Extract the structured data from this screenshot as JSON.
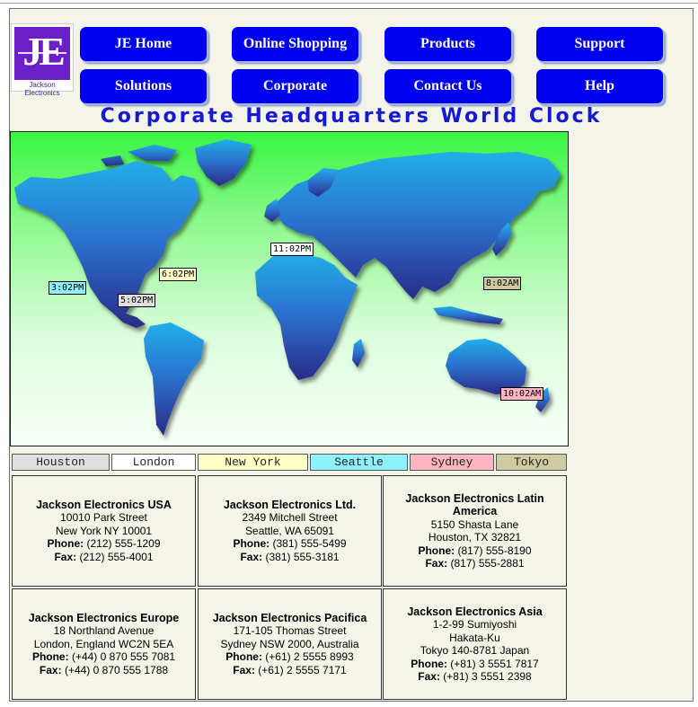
{
  "logo": {
    "mark": "JE",
    "caption": "Jackson Electronics"
  },
  "nav": [
    {
      "label": "JE Home"
    },
    {
      "label": "Online Shopping"
    },
    {
      "label": "Products"
    },
    {
      "label": "Support"
    },
    {
      "label": "Solutions"
    },
    {
      "label": "Corporate"
    },
    {
      "label": "Contact Us"
    },
    {
      "label": "Help"
    }
  ],
  "title": "Corporate Headquarters World Clock",
  "map_times": {
    "london": "11:02PM",
    "new_york": "6:02PM",
    "seattle": "3:02PM",
    "houston": "5:02PM",
    "tokyo": "8:02AM",
    "sydney": "10:02AM"
  },
  "cities": [
    {
      "label": "Houston",
      "color": "#e0e0e0"
    },
    {
      "label": "London",
      "color": "#ffffff"
    },
    {
      "label": "New York",
      "color": "#ffffc8"
    },
    {
      "label": "Seattle",
      "color": "#8ff0ff"
    },
    {
      "label": "Sydney",
      "color": "#ffb6c1"
    },
    {
      "label": "Tokyo",
      "color": "#cfcaa0"
    }
  ],
  "offices": [
    {
      "name": "Jackson Electronics USA",
      "addr1": "10010 Park Street",
      "addr2": "New York NY 10001",
      "phone_label": "Phone:",
      "phone": "(212) 555-1209",
      "fax_label": "Fax:",
      "fax": "(212) 555-4001"
    },
    {
      "name": "Jackson Electronics Ltd.",
      "addr1": "2349 Mitchell Street",
      "addr2": "Seattle, WA 65091",
      "phone_label": "Phone:",
      "phone": "(381) 555-5499",
      "fax_label": "Fax:",
      "fax": "(381) 555-3181"
    },
    {
      "name": "Jackson Electronics Latin America",
      "addr1": "5150 Shasta Lane",
      "addr2": "Houston, TX 32821",
      "phone_label": "Phone:",
      "phone": "(817) 555-8190",
      "fax_label": "Fax:",
      "fax": "(817) 555-2881"
    },
    {
      "name": "Jackson Electronics Europe",
      "addr1": "18 Northland Avenue",
      "addr2": "London, England WC2N 5EA",
      "phone_label": "Phone:",
      "phone": "(+44) 0 870 555 7081",
      "fax_label": "Fax:",
      "fax": "(+44) 0 870 555 1788"
    },
    {
      "name": "Jackson Electronics Pacifica",
      "addr1": "171-105 Thomas Street",
      "addr2": "Sydney NSW 2000, Australia",
      "phone_label": "Phone:",
      "phone": "(+61) 2 5555 8993",
      "fax_label": "Fax:",
      "fax": "(+61) 2 5555 7171"
    },
    {
      "name": "Jackson Electronics Asia",
      "addr1": "1-2-99 Sumiyoshi",
      "addr1b": "Hakata-Ku",
      "addr2": "Tokyo 140-8781 Japan",
      "phone_label": "Phone:",
      "phone": "(+81) 3 5551 7817",
      "fax_label": "Fax:",
      "fax": "(+81) 3 5551 2398"
    }
  ],
  "colors": {
    "nav_button": "#0000f0",
    "title": "#1419d6",
    "page_bg": "#f4f4e8"
  }
}
